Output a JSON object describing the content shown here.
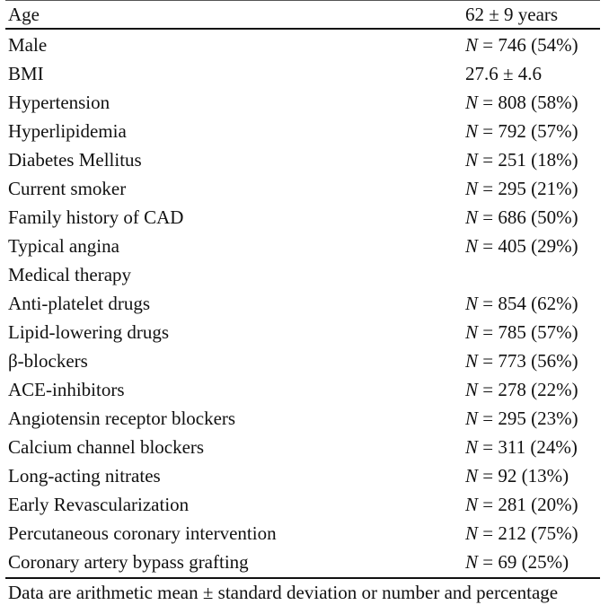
{
  "table": {
    "header": {
      "label": "Age",
      "value": "62 ± 9 years"
    },
    "rows": [
      {
        "label": "Male",
        "n_symbol": "N",
        "value": " = 746 (54%)"
      },
      {
        "label": "BMI",
        "n_symbol": "",
        "value": "27.6 ± 4.6"
      },
      {
        "label": "Hypertension",
        "n_symbol": "N",
        "value": " = 808 (58%)"
      },
      {
        "label": "Hyperlipidemia",
        "n_symbol": "N",
        "value": " = 792 (57%)"
      },
      {
        "label": "Diabetes Mellitus",
        "n_symbol": "N",
        "value": " = 251 (18%)"
      },
      {
        "label": "Current smoker",
        "n_symbol": "N",
        "value": " = 295 (21%)"
      },
      {
        "label": "Family history of CAD",
        "n_symbol": "N",
        "value": " = 686 (50%)"
      },
      {
        "label": "Typical angina",
        "n_symbol": "N",
        "value": " = 405 (29%)"
      },
      {
        "label": "Medical therapy",
        "n_symbol": "",
        "value": ""
      },
      {
        "label": "Anti-platelet drugs",
        "n_symbol": "N",
        "value": " = 854 (62%)"
      },
      {
        "label": "Lipid-lowering drugs",
        "n_symbol": "N",
        "value": " = 785 (57%)"
      },
      {
        "label": "β-blockers",
        "n_symbol": "N",
        "value": " = 773 (56%)"
      },
      {
        "label": "ACE-inhibitors",
        "n_symbol": "N",
        "value": " = 278 (22%)"
      },
      {
        "label": "Angiotensin receptor blockers",
        "n_symbol": "N",
        "value": " = 295 (23%)"
      },
      {
        "label": "Calcium channel blockers",
        "n_symbol": "N",
        "value": " = 311 (24%)"
      },
      {
        "label": "Long-acting nitrates",
        "n_symbol": "N",
        "value": " = 92 (13%)"
      },
      {
        "label": "Early Revascularization",
        "n_symbol": "N",
        "value": " = 281 (20%)"
      },
      {
        "label": "Percutaneous coronary intervention",
        "n_symbol": "N",
        "value": " = 212 (75%)"
      },
      {
        "label": "Coronary artery bypass grafting",
        "n_symbol": "N",
        "value": " = 69 (25%)"
      }
    ]
  },
  "footnote": "Data are arithmetic mean ± standard deviation or number and percentage"
}
